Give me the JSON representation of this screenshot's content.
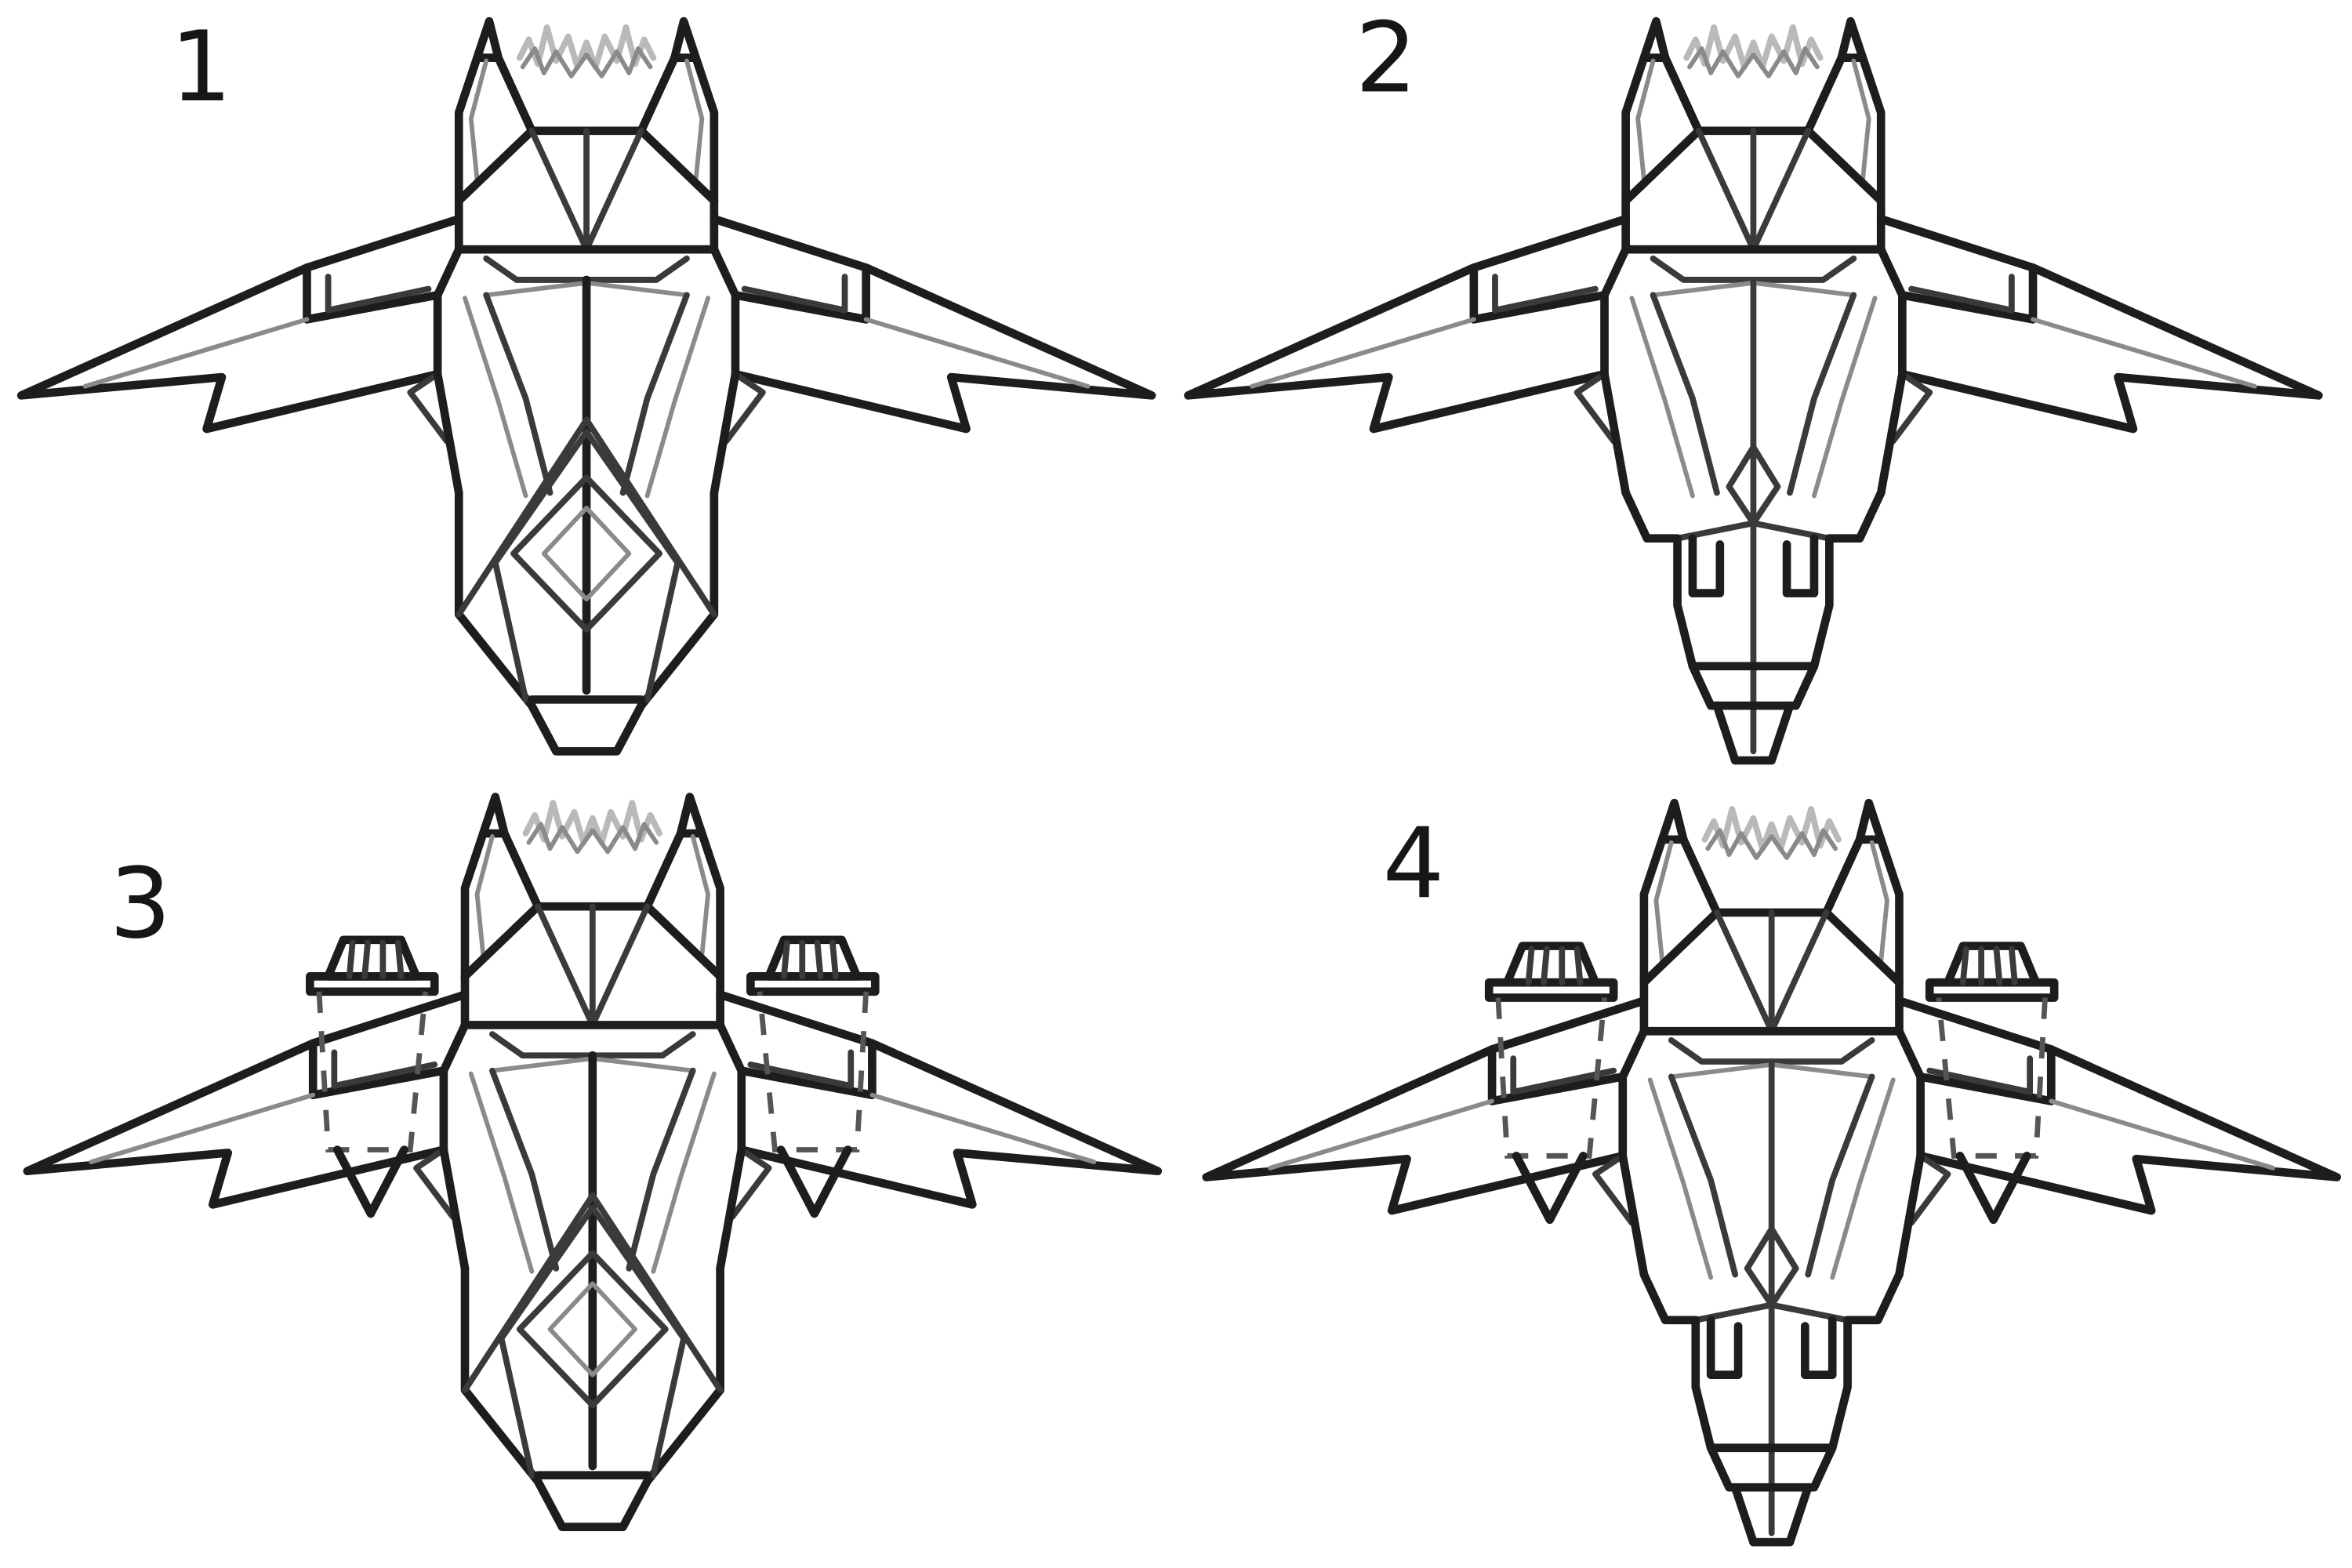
{
  "sheet": {
    "panels": [
      {
        "number": "1",
        "variant": "long-nose",
        "side_engines": false
      },
      {
        "number": "2",
        "variant": "segmented-tail",
        "side_engines": false
      },
      {
        "number": "3",
        "variant": "long-nose",
        "side_engines": true
      },
      {
        "number": "4",
        "variant": "segmented-tail",
        "side_engines": true
      }
    ],
    "colors": {
      "background": "#ffffff",
      "ink": "#1d1d1d",
      "light_ink": "#8a8a8a",
      "flame": "#b9b9b9"
    },
    "icons": [
      "spaceship-sketch-icon",
      "engine-pod-icon",
      "exhaust-flame-icon"
    ]
  }
}
